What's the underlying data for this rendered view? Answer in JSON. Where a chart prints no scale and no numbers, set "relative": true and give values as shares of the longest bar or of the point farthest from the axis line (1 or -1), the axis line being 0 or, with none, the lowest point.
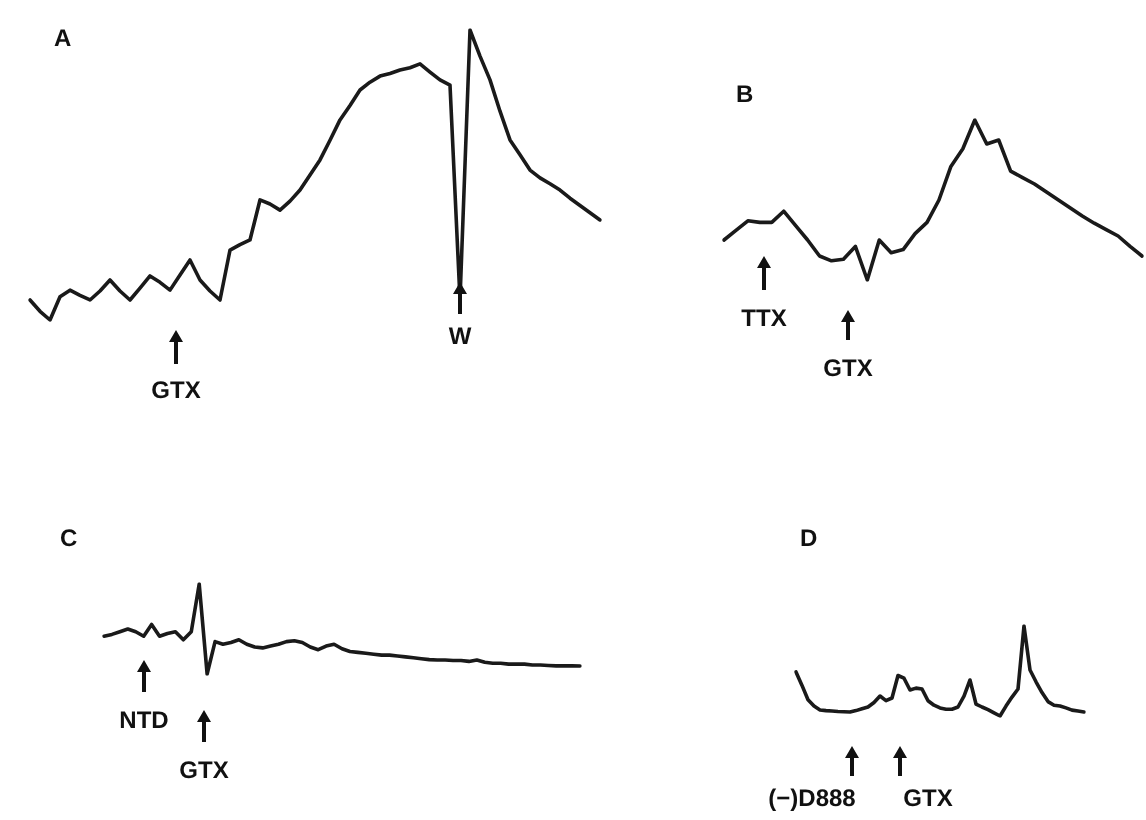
{
  "chart_data": [
    {
      "type": "line",
      "title": "A",
      "relative": true,
      "categories": [
        null,
        null,
        null,
        null,
        null,
        null,
        null,
        null,
        null,
        null,
        null,
        null,
        null,
        null,
        null,
        null,
        null,
        null,
        null,
        null,
        null,
        null,
        null,
        null,
        null,
        null,
        null,
        null,
        null,
        null,
        null,
        null,
        null,
        null,
        null,
        null,
        null,
        null,
        null,
        null,
        null,
        null,
        null,
        null,
        null,
        null,
        null,
        null,
        null,
        null,
        null,
        null,
        null,
        null,
        null,
        null,
        null,
        null
      ],
      "series": [
        {
          "color": "#1a1a1a",
          "values": [
            0.069,
            0.03,
            0,
            0.08,
            0.103,
            0.085,
            0.069,
            0.1,
            0.138,
            0.1,
            0.069,
            0.11,
            0.152,
            0.13,
            0.103,
            0.155,
            0.207,
            0.138,
            0.1,
            0.069,
            0.241,
            0.26,
            0.276,
            0.414,
            0.4,
            0.379,
            0.41,
            0.448,
            0.5,
            0.552,
            0.62,
            0.69,
            0.74,
            0.793,
            0.82,
            0.841,
            0.85,
            0.862,
            0.87,
            0.883,
            0.855,
            0.828,
            0.81,
            0.07,
            1,
            0.91,
            0.828,
            0.72,
            0.621,
            0.57,
            0.517,
            0.49,
            0.47,
            0.448,
            0.42,
            0.395,
            0.37,
            0.345
          ]
        }
      ],
      "annotations": [
        "GTX",
        "W"
      ]
    },
    {
      "type": "line",
      "title": "B",
      "relative": true,
      "categories": [
        null,
        null,
        null,
        null,
        null,
        null,
        null,
        null,
        null,
        null,
        null,
        null,
        null,
        null,
        null,
        null,
        null,
        null,
        null,
        null,
        null,
        null,
        null,
        null,
        null,
        null,
        null,
        null,
        null,
        null,
        null,
        null,
        null,
        null,
        null,
        null
      ],
      "series": [
        {
          "color": "#1a1a1a",
          "values": [
            0.25,
            0.31,
            0.37,
            0.36,
            0.36,
            0.43,
            0.34,
            0.25,
            0.15,
            0.12,
            0.13,
            0.21,
            0,
            0.25,
            0.17,
            0.19,
            0.29,
            0.36,
            0.5,
            0.71,
            0.82,
            1,
            0.85,
            0.875,
            0.68,
            0.64,
            0.6,
            0.55,
            0.5,
            0.45,
            0.4,
            0.355,
            0.315,
            0.275,
            0.21,
            0.15
          ]
        }
      ],
      "annotations": [
        "TTX",
        "GTX"
      ]
    },
    {
      "type": "line",
      "title": "C",
      "relative": true,
      "categories": [
        null,
        null,
        null,
        null,
        null,
        null,
        null,
        null,
        null,
        null,
        null,
        null,
        null,
        null,
        null,
        null,
        null,
        null,
        null,
        null,
        null,
        null,
        null,
        null,
        null,
        null,
        null,
        null,
        null,
        null,
        null,
        null,
        null,
        null,
        null,
        null,
        null,
        null,
        null,
        null,
        null,
        null,
        null,
        null,
        null,
        null,
        null,
        null,
        null,
        null,
        null,
        null,
        null,
        null,
        null,
        null,
        null,
        null,
        null,
        null,
        null
      ],
      "series": [
        {
          "color": "#1a1a1a",
          "values": [
            0.42,
            0.44,
            0.47,
            0.5,
            0.47,
            0.42,
            0.55,
            0.42,
            0.45,
            0.47,
            0.38,
            0.47,
            1,
            0,
            0.36,
            0.33,
            0.35,
            0.38,
            0.33,
            0.3,
            0.29,
            0.31,
            0.33,
            0.36,
            0.37,
            0.35,
            0.3,
            0.27,
            0.31,
            0.33,
            0.28,
            0.25,
            0.24,
            0.23,
            0.22,
            0.21,
            0.21,
            0.2,
            0.19,
            0.18,
            0.17,
            0.16,
            0.156,
            0.156,
            0.15,
            0.15,
            0.14,
            0.156,
            0.13,
            0.12,
            0.12,
            0.11,
            0.111,
            0.11,
            0.1,
            0.1,
            0.095,
            0.09,
            0.09,
            0.09,
            0.089
          ]
        }
      ],
      "annotations": [
        "NTD",
        "GTX"
      ]
    },
    {
      "type": "line",
      "title": "D",
      "relative": true,
      "categories": [
        null,
        null,
        null,
        null,
        null,
        null,
        null,
        null,
        null,
        null,
        null,
        null,
        null,
        null,
        null,
        null,
        null,
        null,
        null,
        null,
        null,
        null,
        null,
        null,
        null,
        null,
        null,
        null,
        null,
        null,
        null,
        null,
        null,
        null,
        null,
        null,
        null,
        null,
        null,
        null,
        null,
        null,
        null,
        null,
        null,
        null,
        null,
        null,
        null
      ],
      "series": [
        {
          "color": "#1a1a1a",
          "values": [
            0.489,
            0.34,
            0.18,
            0.11,
            0.067,
            0.06,
            0.055,
            0.05,
            0.047,
            0.044,
            0.06,
            0.08,
            0.1,
            0.15,
            0.222,
            0.17,
            0.2,
            0.45,
            0.42,
            0.289,
            0.31,
            0.3,
            0.17,
            0.12,
            0.09,
            0.075,
            0.075,
            0.1,
            0.22,
            0.4,
            0.133,
            0.1,
            0.07,
            0.035,
            0,
            0.11,
            0.21,
            0.3,
            1,
            0.511,
            0.38,
            0.26,
            0.16,
            0.12,
            0.111,
            0.09,
            0.065,
            0.055,
            0.044
          ]
        }
      ],
      "annotations": [
        "(−)D888",
        "GTX"
      ]
    }
  ]
}
